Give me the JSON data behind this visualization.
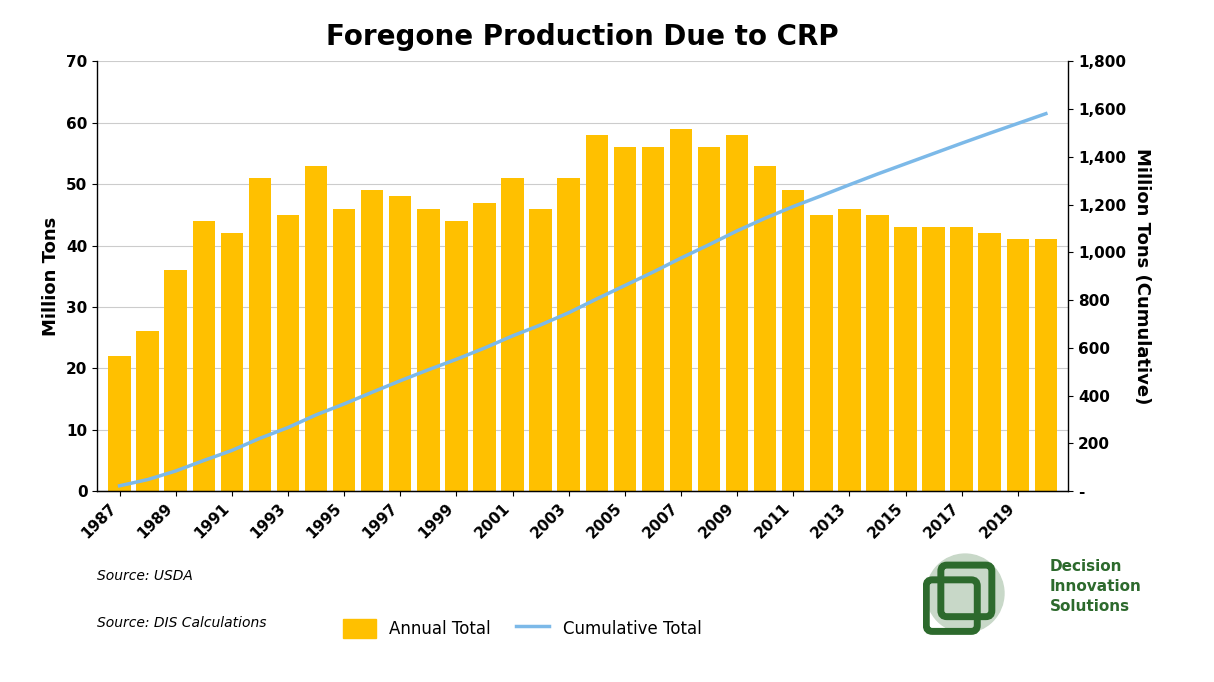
{
  "title": "Foregone Production Due to CRP",
  "years": [
    1987,
    1988,
    1989,
    1990,
    1991,
    1992,
    1993,
    1994,
    1995,
    1996,
    1997,
    1998,
    1999,
    2000,
    2001,
    2002,
    2003,
    2004,
    2005,
    2006,
    2007,
    2008,
    2009,
    2010,
    2011,
    2012,
    2013,
    2014,
    2015,
    2016,
    2017,
    2018,
    2019,
    2020
  ],
  "annual": [
    22,
    26,
    36,
    44,
    42,
    51,
    45,
    53,
    46,
    49,
    48,
    46,
    44,
    47,
    51,
    46,
    51,
    58,
    56,
    56,
    59,
    56,
    58,
    53,
    49,
    45,
    46,
    45,
    43,
    43,
    43,
    42,
    41,
    41
  ],
  "bar_color": "#FFC000",
  "line_color": "#7CB9E8",
  "ylabel_left": "Million Tons",
  "ylabel_right": "Million Tons (Cumulative)",
  "ylim_left": [
    0,
    70
  ],
  "ylim_right": [
    0,
    1800
  ],
  "yticks_left": [
    0,
    10,
    20,
    30,
    40,
    50,
    60,
    70
  ],
  "yticks_right": [
    0,
    200,
    400,
    600,
    800,
    1000,
    1200,
    1400,
    1600,
    1800
  ],
  "ytick_labels_right": [
    "-",
    "200",
    "400",
    "600",
    "800",
    "1,000",
    "1,200",
    "1,400",
    "1,600",
    "1,800"
  ],
  "source_text1": "Source: USDA",
  "source_text2": "Source: DIS Calculations",
  "legend_bar": "Annual Total",
  "legend_line": "Cumulative Total",
  "background_color": "#FFFFFF",
  "grid_color": "#CCCCCC",
  "title_fontsize": 20,
  "axis_label_fontsize": 13,
  "tick_fontsize": 11,
  "legend_fontsize": 12
}
